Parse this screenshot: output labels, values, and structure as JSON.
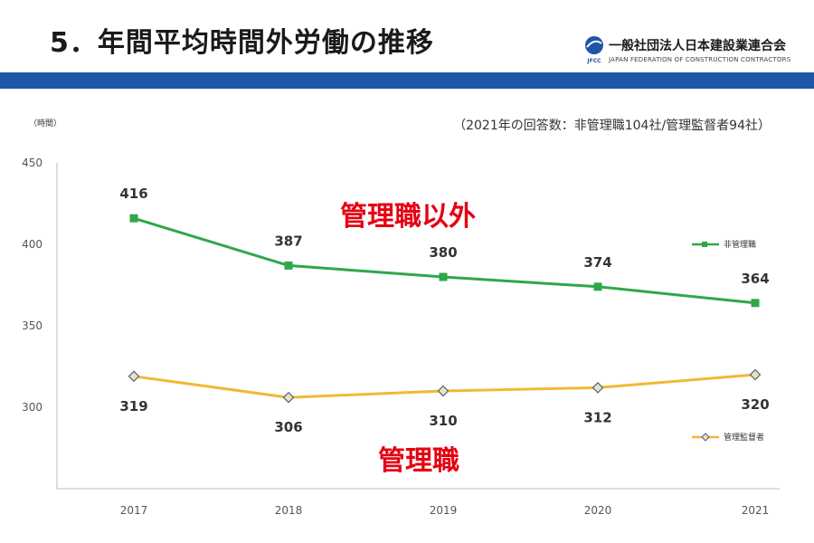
{
  "page": {
    "title": "5．年間平均時間外労働の推移",
    "logo_org": "一般社団法人日本建設業連合会",
    "logo_en": "JAPAN FEDERATION OF CONSTRUCTION CONTRACTORS",
    "logo_mark": "JFCC",
    "note": "（2021年の回答数：非管理職104社/管理監督者94社）",
    "callout_upper": "管理職以外",
    "callout_lower": "管理職",
    "band_color": "#1e56a8",
    "callout_color": "#e60012"
  },
  "chart_data": {
    "type": "line",
    "ylabel": "（時間）",
    "xlabel": "",
    "title": "",
    "categories": [
      "2017",
      "2018",
      "2019",
      "2020",
      "2021"
    ],
    "ylim": [
      250,
      450
    ],
    "yticks": [
      300,
      350,
      400,
      450
    ],
    "grid": false,
    "legend_position": "right",
    "series": [
      {
        "name": "非管理職",
        "values": [
          416,
          387,
          380,
          374,
          364
        ],
        "color": "#2fa84a",
        "marker": "square",
        "label_position": "above"
      },
      {
        "name": "管理監督者",
        "values": [
          319,
          306,
          310,
          312,
          320
        ],
        "color": "#f2b833",
        "marker": "diamond",
        "label_position": "below"
      }
    ]
  }
}
